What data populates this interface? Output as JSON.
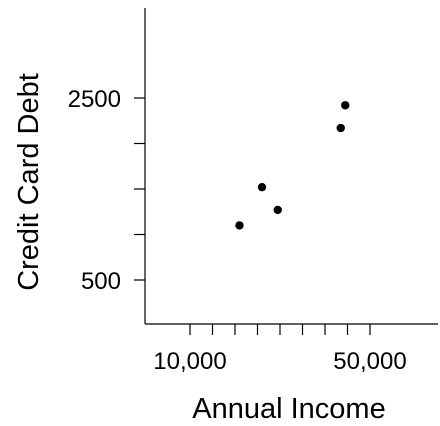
{
  "chart_data": {
    "type": "scatter",
    "xlabel": "Annual Income",
    "ylabel": "Credit Card Debt",
    "xlim": [
      0,
      60000
    ],
    "ylim": [
      0,
      3500
    ],
    "x_ticks": [
      10000,
      15000,
      20000,
      25000,
      30000,
      35000,
      40000,
      45000,
      50000
    ],
    "x_tick_labels": [
      {
        "value": 10000,
        "label": "10,000"
      },
      {
        "value": 50000,
        "label": "50,000"
      }
    ],
    "y_ticks": [
      500,
      1000,
      1500,
      2000,
      2500
    ],
    "y_tick_labels": [
      {
        "value": 500,
        "label": "500"
      },
      {
        "value": 2500,
        "label": "2500"
      }
    ],
    "grid": false,
    "legend": "none",
    "point_color": "#000000",
    "series": [
      {
        "points": [
          {
            "x": 21000,
            "y": 1100
          },
          {
            "x": 26000,
            "y": 1520
          },
          {
            "x": 29500,
            "y": 1270
          },
          {
            "x": 43500,
            "y": 2170
          },
          {
            "x": 44500,
            "y": 2420
          }
        ]
      }
    ]
  }
}
